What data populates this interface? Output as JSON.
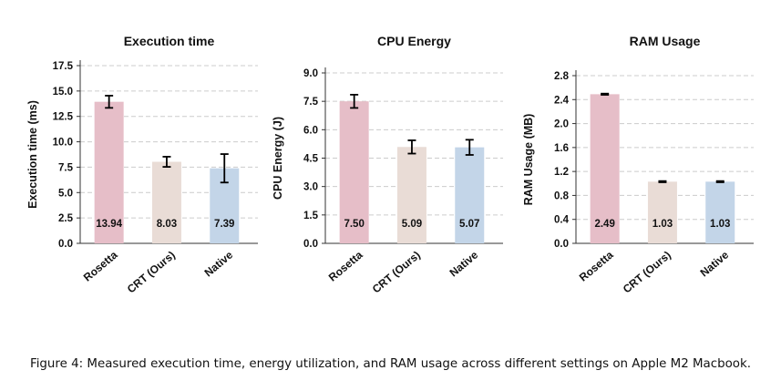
{
  "chart_data": [
    {
      "type": "bar",
      "title": "Execution time",
      "ylabel": "Execution time (ms)",
      "categories": [
        "Rosetta",
        "CRT (Ours)",
        "Native"
      ],
      "values": [
        13.94,
        8.03,
        7.39
      ],
      "value_labels": [
        "13.94",
        "8.03",
        "7.39"
      ],
      "error": [
        0.6,
        0.5,
        1.4
      ],
      "ylim": [
        0,
        17.5
      ],
      "yticks": [
        0.0,
        2.5,
        5.0,
        7.5,
        10.0,
        12.5,
        15.0,
        17.5
      ],
      "ytick_labels": [
        "0.0",
        "2.5",
        "5.0",
        "7.5",
        "10.0",
        "12.5",
        "15.0",
        "17.5"
      ],
      "grid": true,
      "colors": [
        "#e6bec8",
        "#e9dcd6",
        "#c3d5e8"
      ]
    },
    {
      "type": "bar",
      "title": "CPU Energy",
      "ylabel": "CPU Energy (J)",
      "categories": [
        "Rosetta",
        "CRT (Ours)",
        "Native"
      ],
      "values": [
        7.5,
        5.09,
        5.07
      ],
      "value_labels": [
        "7.50",
        "5.09",
        "5.07"
      ],
      "error": [
        0.35,
        0.35,
        0.4
      ],
      "ylim": [
        0,
        9.0
      ],
      "yticks": [
        0.0,
        1.5,
        3.0,
        4.5,
        6.0,
        7.5,
        9.0
      ],
      "ytick_labels": [
        "0.0",
        "1.5",
        "3.0",
        "4.5",
        "6.0",
        "7.5",
        "9.0"
      ],
      "grid": true,
      "colors": [
        "#e6bec8",
        "#e9dcd6",
        "#c3d5e8"
      ]
    },
    {
      "type": "bar",
      "title": "RAM Usage",
      "ylabel": "RAM Usage (MB)",
      "categories": [
        "Rosetta",
        "CRT (Ours)",
        "Native"
      ],
      "values": [
        2.49,
        1.03,
        1.03
      ],
      "value_labels": [
        "2.49",
        "1.03",
        "1.03"
      ],
      "error": [
        0.01,
        0.01,
        0.01
      ],
      "ylim": [
        0,
        2.8
      ],
      "yticks": [
        0.0,
        0.4,
        0.8,
        1.2,
        1.6,
        2.0,
        2.4,
        2.8
      ],
      "ytick_labels": [
        "0.0",
        "0.4",
        "0.8",
        "1.2",
        "1.6",
        "2.0",
        "2.4",
        "2.8"
      ],
      "grid": true,
      "colors": [
        "#e6bec8",
        "#e9dcd6",
        "#c3d5e8"
      ]
    }
  ],
  "caption": "Figure 4: Measured execution time, energy utilization, and RAM usage across different settings on Apple M2 Macbook."
}
